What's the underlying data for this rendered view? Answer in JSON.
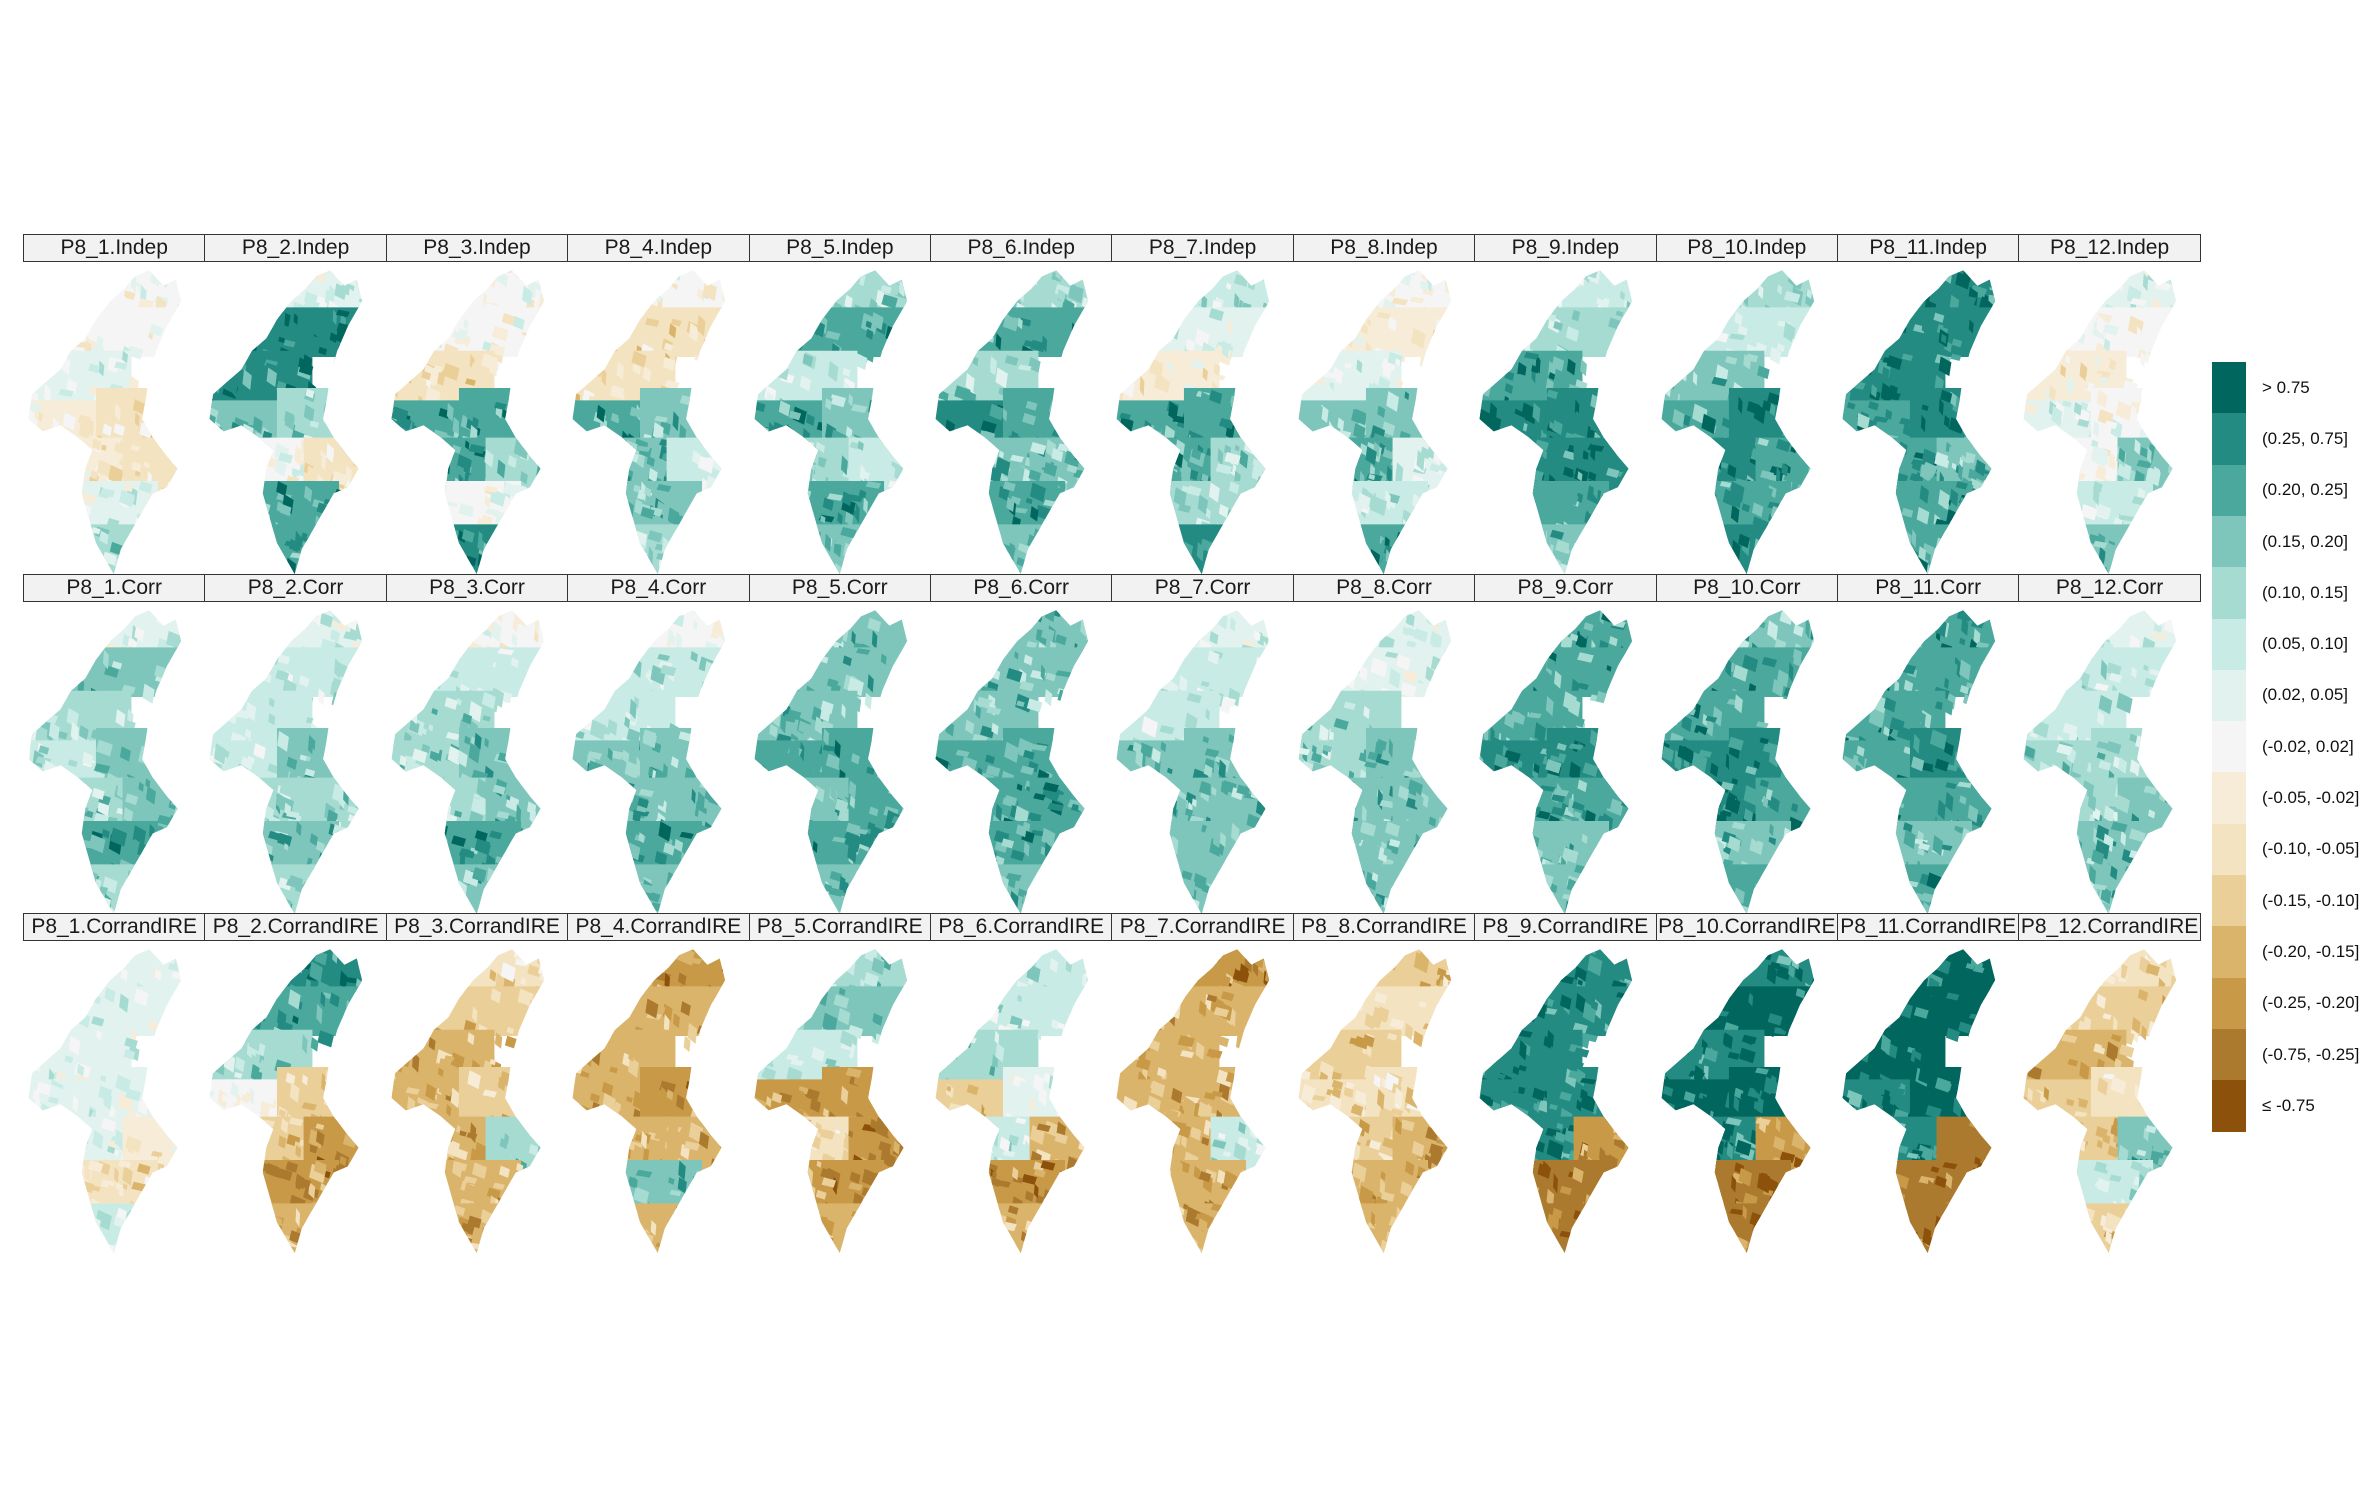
{
  "figure": {
    "rows": [
      {
        "suffix": "Indep",
        "panels": [
          {
            "label": "P8_1.Indep",
            "scheme": [
              7,
              7,
              6,
              8,
              9,
              8,
              9,
              6,
              4
            ]
          },
          {
            "label": "P8_2.Indep",
            "scheme": [
              6,
              1,
              1,
              3,
              4,
              7,
              9,
              2,
              2
            ]
          },
          {
            "label": "P8_3.Indep",
            "scheme": [
              7,
              7,
              9,
              2,
              2,
              2,
              4,
              7,
              1
            ]
          },
          {
            "label": "P8_4.Indep",
            "scheme": [
              7,
              9,
              9,
              2,
              3,
              3,
              5,
              3,
              4
            ]
          },
          {
            "label": "P8_5.Indep",
            "scheme": [
              4,
              2,
              5,
              2,
              3,
              4,
              5,
              2,
              3
            ]
          },
          {
            "label": "P8_6.Indep",
            "scheme": [
              4,
              2,
              4,
              1,
              2,
              3,
              3,
              2,
              3
            ]
          },
          {
            "label": "P8_7.Indep",
            "scheme": [
              5,
              6,
              8,
              2,
              2,
              2,
              4,
              4,
              1
            ]
          },
          {
            "label": "P8_8.Indep",
            "scheme": [
              7,
              8,
              6,
              3,
              3,
              2,
              6,
              5,
              2
            ]
          },
          {
            "label": "P8_9.Indep",
            "scheme": [
              5,
              4,
              2,
              1,
              1,
              1,
              1,
              2,
              3
            ]
          },
          {
            "label": "P8_10.Indep",
            "scheme": [
              4,
              5,
              3,
              2,
              1,
              1,
              2,
              2,
              1
            ]
          },
          {
            "label": "P8_11.Indep",
            "scheme": [
              1,
              1,
              1,
              2,
              1,
              2,
              3,
              2,
              2
            ]
          },
          {
            "label": "P8_12.Indep",
            "scheme": [
              6,
              7,
              8,
              6,
              7,
              7,
              3,
              5,
              3
            ]
          }
        ]
      },
      {
        "suffix": "Corr",
        "panels": [
          {
            "label": "P8_1.Corr",
            "scheme": [
              6,
              3,
              4,
              5,
              3,
              4,
              3,
              2,
              4
            ]
          },
          {
            "label": "P8_2.Corr",
            "scheme": [
              6,
              5,
              5,
              5,
              3,
              4,
              4,
              3,
              4
            ]
          },
          {
            "label": "P8_3.Corr",
            "scheme": [
              7,
              5,
              4,
              4,
              3,
              4,
              3,
              2,
              3
            ]
          },
          {
            "label": "P8_4.Corr",
            "scheme": [
              7,
              5,
              5,
              3,
              3,
              3,
              3,
              2,
              3
            ]
          },
          {
            "label": "P8_5.Corr",
            "scheme": [
              3,
              3,
              3,
              2,
              2,
              3,
              2,
              2,
              3
            ]
          },
          {
            "label": "P8_6.Corr",
            "scheme": [
              3,
              3,
              3,
              2,
              2,
              2,
              2,
              2,
              3
            ]
          },
          {
            "label": "P8_7.Corr",
            "scheme": [
              6,
              5,
              5,
              3,
              3,
              3,
              3,
              3,
              3
            ]
          },
          {
            "label": "P8_8.Corr",
            "scheme": [
              6,
              6,
              4,
              4,
              3,
              3,
              3,
              3,
              3
            ]
          },
          {
            "label": "P8_9.Corr",
            "scheme": [
              2,
              2,
              2,
              1,
              1,
              2,
              2,
              3,
              3
            ]
          },
          {
            "label": "P8_10.Corr",
            "scheme": [
              3,
              2,
              2,
              1,
              1,
              1,
              2,
              3,
              2
            ]
          },
          {
            "label": "P8_11.Corr",
            "scheme": [
              2,
              2,
              2,
              2,
              1,
              2,
              2,
              3,
              2
            ]
          },
          {
            "label": "P8_12.Corr",
            "scheme": [
              6,
              5,
              5,
              4,
              4,
              4,
              3,
              3,
              3
            ]
          }
        ]
      },
      {
        "suffix": "CorrandIRE",
        "panels": [
          {
            "label": "P8_1.CorrandIRE",
            "scheme": [
              6,
              6,
              6,
              6,
              6,
              6,
              8,
              9,
              5
            ]
          },
          {
            "label": "P8_2.CorrandIRE",
            "scheme": [
              1,
              2,
              4,
              7,
              10,
              10,
              12,
              12,
              11
            ]
          },
          {
            "label": "P8_3.CorrandIRE",
            "scheme": [
              9,
              10,
              11,
              11,
              10,
              11,
              4,
              11,
              11
            ]
          },
          {
            "label": "P8_4.CorrandIRE",
            "scheme": [
              12,
              11,
              11,
              11,
              12,
              11,
              11,
              3,
              11
            ]
          },
          {
            "label": "P8_5.CorrandIRE",
            "scheme": [
              4,
              3,
              5,
              12,
              12,
              9,
              12,
              12,
              11
            ]
          },
          {
            "label": "P8_6.CorrandIRE",
            "scheme": [
              5,
              5,
              4,
              10,
              6,
              5,
              11,
              12,
              11
            ]
          },
          {
            "label": "P8_7.CorrandIRE",
            "scheme": [
              12,
              11,
              11,
              11,
              11,
              11,
              5,
              11,
              11
            ]
          },
          {
            "label": "P8_8.CorrandIRE",
            "scheme": [
              10,
              9,
              10,
              9,
              9,
              10,
              11,
              11,
              11
            ]
          },
          {
            "label": "P8_9.CorrandIRE",
            "scheme": [
              1,
              1,
              1,
              1,
              1,
              1,
              12,
              13,
              13
            ]
          },
          {
            "label": "P8_10.CorrandIRE",
            "scheme": [
              1,
              0,
              1,
              0,
              0,
              1,
              12,
              13,
              13
            ]
          },
          {
            "label": "P8_11.CorrandIRE",
            "scheme": [
              0,
              0,
              0,
              1,
              0,
              1,
              13,
              13,
              13
            ]
          },
          {
            "label": "P8_12.CorrandIRE",
            "scheme": [
              9,
              10,
              11,
              10,
              9,
              10,
              3,
              5,
              10
            ]
          }
        ]
      }
    ]
  },
  "legend": {
    "items": [
      {
        "label": "> 0.75",
        "color": "#01665e"
      },
      {
        "label": "(0.25, 0.75]",
        "color": "#238b82"
      },
      {
        "label": "(0.20, 0.25]",
        "color": "#4aa89d"
      },
      {
        "label": "(0.15, 0.20]",
        "color": "#7ec6bb"
      },
      {
        "label": "(0.10, 0.15]",
        "color": "#a6dbd1"
      },
      {
        "label": "(0.05, 0.10]",
        "color": "#c9ebe5"
      },
      {
        "label": "(0.02, 0.05]",
        "color": "#e2f2ef"
      },
      {
        "label": "(-0.02, 0.02]",
        "color": "#f5f5f5"
      },
      {
        "label": "(-0.05, -0.02]",
        "color": "#f6ecd8"
      },
      {
        "label": "(-0.10, -0.05]",
        "color": "#f4e3c0"
      },
      {
        "label": "(-0.15, -0.10]",
        "color": "#eacf99"
      },
      {
        "label": "(-0.20, -0.15]",
        "color": "#dbb46c"
      },
      {
        "label": "(-0.25, -0.20]",
        "color": "#c89a48"
      },
      {
        "label": "(-0.75, -0.25]",
        "color": "#ab7a2f"
      },
      {
        "label": "≤ -0.75",
        "color": "#8c510a"
      }
    ]
  }
}
